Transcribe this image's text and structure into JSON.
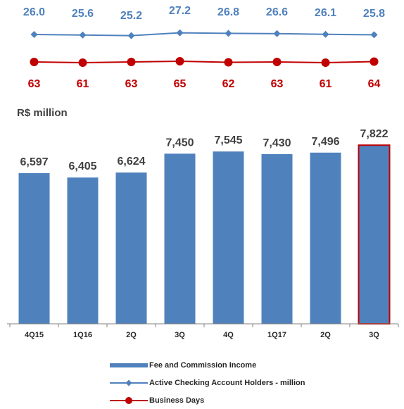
{
  "unit_label": "R$ million",
  "colors": {
    "bar": "#4f81bd",
    "highlight_border": "#c00000",
    "accounts_line": "#4f81bd",
    "business_days_line": "#c00000",
    "bar_labels": "#404040",
    "axis": "#808080"
  },
  "chart_data": {
    "type": "bar",
    "categories": [
      "4Q15",
      "1Q16",
      "2Q",
      "3Q",
      "4Q",
      "1Q17",
      "2Q",
      "3Q"
    ],
    "ylim": [
      0,
      9000
    ],
    "grid": false,
    "legend_position": "bottom",
    "highlighted_category_index": 7,
    "series": [
      {
        "name": "Fee and Commission Income",
        "type": "bar",
        "values": [
          6597,
          6405,
          6624,
          7450,
          7545,
          7430,
          7496,
          7822
        ],
        "labels": [
          "6,597",
          "6,405",
          "6,624",
          "7,450",
          "7,545",
          "7,430",
          "7,496",
          "7,822"
        ]
      },
      {
        "name": "Active Checking Account Holders - million",
        "type": "line",
        "marker": "diamond",
        "values": [
          26.0,
          25.6,
          25.2,
          27.2,
          26.8,
          26.6,
          26.1,
          25.8
        ],
        "labels": [
          "26.0",
          "25.6",
          "25.2",
          "27.2",
          "26.8",
          "26.6",
          "26.1",
          "25.8"
        ]
      },
      {
        "name": "Business Days",
        "type": "line",
        "marker": "circle",
        "values": [
          63,
          61,
          63,
          65,
          62,
          63,
          61,
          64
        ],
        "labels": [
          "63",
          "61",
          "63",
          "65",
          "62",
          "63",
          "61",
          "64"
        ]
      }
    ]
  }
}
